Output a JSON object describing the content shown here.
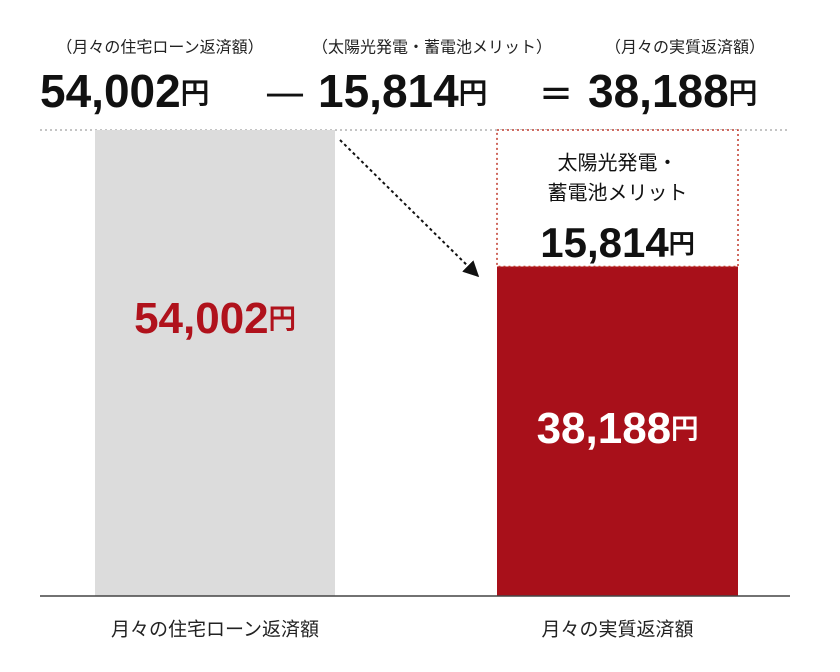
{
  "chart_data": {
    "type": "bar",
    "stacked": true,
    "unit": "円",
    "equation": {
      "labels": [
        "（月々の住宅ローン返済額）",
        "（太陽光発電・蓄電池メリット）",
        "（月々の実質返済額）"
      ],
      "operators": [
        "—",
        "="
      ]
    },
    "categories": [
      "月々の住宅ローン返済額",
      "月々の実質返済額"
    ],
    "segment_label_lines": [
      "太陽光発電・",
      "蓄電池メリット"
    ],
    "series": [
      {
        "color": "#dcdcdc",
        "label_color": "#b0121c",
        "values": [
          54002,
          null
        ],
        "value_labels": [
          "54,002",
          null
        ]
      },
      {
        "color": "#a8101a",
        "label_color": "#ffffff",
        "values": [
          null,
          38188
        ],
        "value_labels": [
          null,
          "38,188"
        ]
      },
      {
        "color": "#ffffff",
        "outline": "#c0392b",
        "label_color": "#111111",
        "values": [
          null,
          15814
        ],
        "value_labels": [
          null,
          "15,814"
        ]
      }
    ],
    "ylim": [
      0,
      54002
    ]
  }
}
